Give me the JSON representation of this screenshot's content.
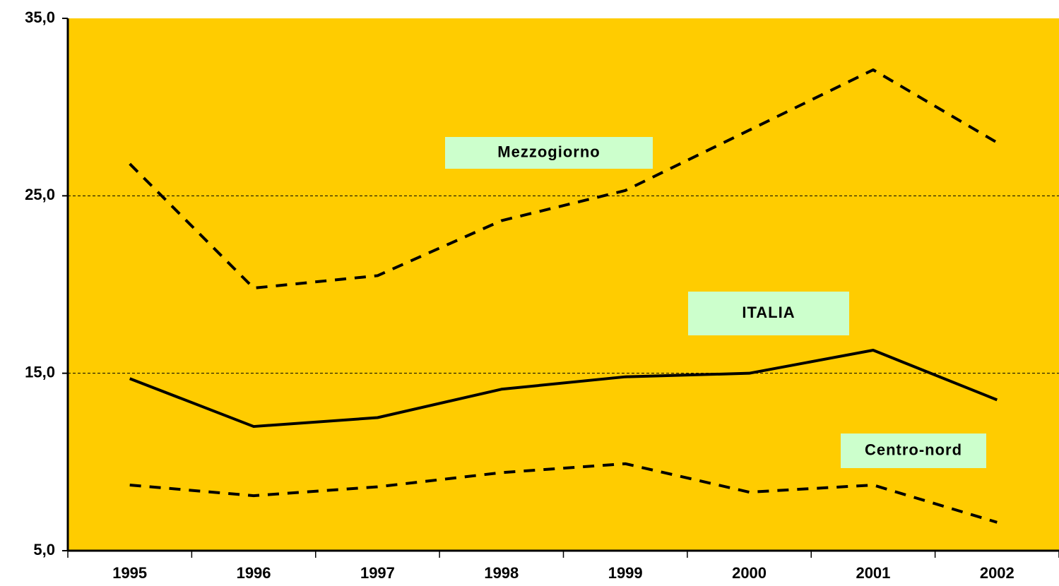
{
  "chart_data": {
    "type": "line",
    "categories": [
      "1995",
      "1996",
      "1997",
      "1998",
      "1999",
      "2000",
      "2001",
      "2002"
    ],
    "series": [
      {
        "name": "Mezzogiorno",
        "color": "#000000",
        "style": "dashed",
        "values": [
          26.8,
          19.8,
          20.5,
          23.6,
          25.3,
          28.7,
          32.1,
          28.0
        ]
      },
      {
        "name": "ITALIA",
        "color": "#000000",
        "style": "solid",
        "values": [
          14.7,
          12.0,
          12.5,
          14.1,
          14.8,
          15.0,
          16.3,
          13.5
        ]
      },
      {
        "name": "Centro-nord",
        "color": "#000000",
        "style": "dashed",
        "values": [
          8.7,
          8.1,
          8.6,
          9.4,
          9.9,
          8.3,
          8.7,
          6.6
        ]
      }
    ],
    "ylim": [
      5,
      35
    ],
    "yticks": [
      {
        "value": 5,
        "label": "5,0"
      },
      {
        "value": 15,
        "label": "15,0"
      },
      {
        "value": 25,
        "label": "25,0"
      },
      {
        "value": 35,
        "label": "35,0"
      }
    ],
    "grid": true,
    "background": "#ffcc00",
    "label_box_color": "#ccffcc"
  }
}
